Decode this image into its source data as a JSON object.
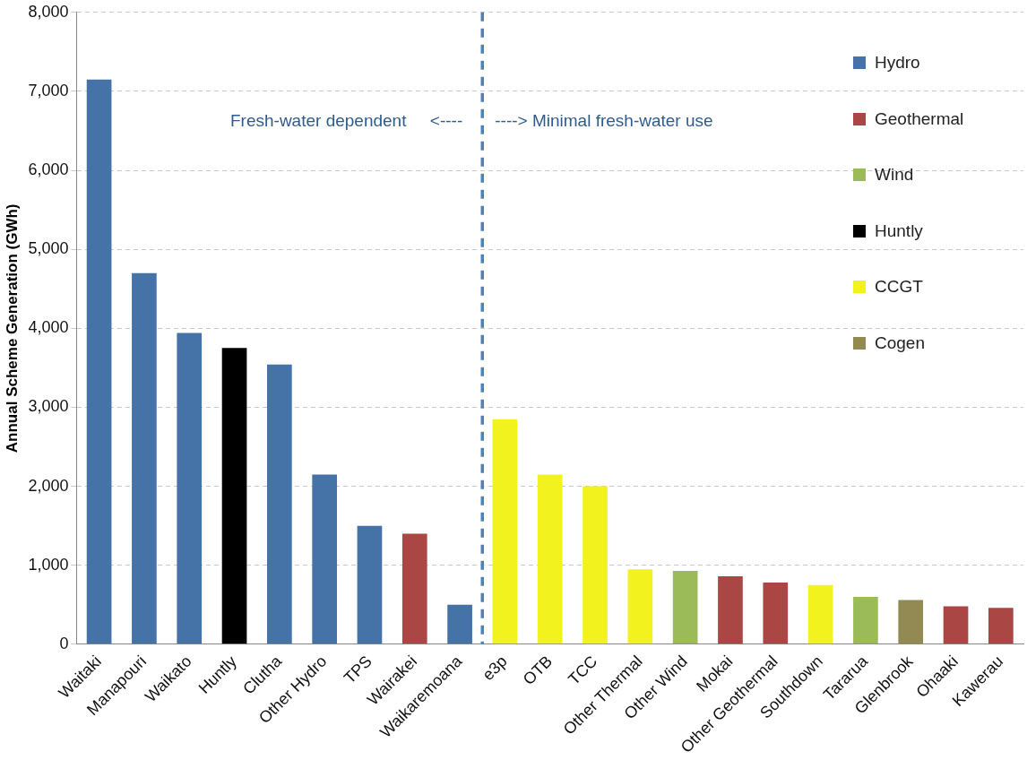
{
  "chart_data": {
    "type": "bar",
    "stacked": true,
    "ylabel": "Annual Scheme Generation (GWh)",
    "categories": [
      "Waitaki",
      "Manapouri",
      "Waikato",
      "Huntly",
      "Clutha",
      "Other Hydro",
      "TPS",
      "Wairakei",
      "Waikaremoana",
      "e3p",
      "OTB",
      "TCC",
      "Other Thermal",
      "Other Wind",
      "Mokai",
      "Other Geothermal",
      "Southdown",
      "Tararua",
      "Glenbrook",
      "Ohaaki",
      "Kawerau"
    ],
    "series": [
      {
        "name": "Hydro",
        "color": "#4572a7",
        "values": [
          7150,
          4700,
          3940,
          null,
          3540,
          2150,
          1500,
          null,
          500,
          null,
          null,
          null,
          null,
          null,
          null,
          null,
          null,
          null,
          null,
          null,
          null
        ]
      },
      {
        "name": "Geothermal",
        "color": "#aa4643",
        "values": [
          null,
          null,
          null,
          null,
          null,
          null,
          null,
          1400,
          null,
          null,
          null,
          null,
          null,
          null,
          860,
          780,
          null,
          null,
          null,
          480,
          460
        ]
      },
      {
        "name": "Wind",
        "color": "#9bbb59",
        "values": [
          null,
          null,
          null,
          null,
          null,
          null,
          null,
          null,
          null,
          null,
          null,
          null,
          null,
          930,
          null,
          null,
          null,
          600,
          null,
          null,
          null
        ]
      },
      {
        "name": "Huntly",
        "color": "#000000",
        "values": [
          null,
          null,
          null,
          3750,
          null,
          null,
          null,
          null,
          null,
          null,
          null,
          null,
          null,
          null,
          null,
          null,
          null,
          null,
          null,
          null,
          null
        ]
      },
      {
        "name": "CCGT",
        "color": "#f2f21e",
        "values": [
          null,
          null,
          null,
          null,
          null,
          null,
          null,
          null,
          null,
          2850,
          2150,
          2000,
          950,
          null,
          null,
          null,
          750,
          null,
          null,
          null,
          null
        ]
      },
      {
        "name": "Cogen",
        "color": "#938953",
        "values": [
          null,
          null,
          null,
          null,
          null,
          null,
          null,
          null,
          null,
          null,
          null,
          null,
          null,
          null,
          null,
          null,
          null,
          null,
          560,
          null,
          null
        ]
      }
    ],
    "ylim": [
      0,
      8000
    ],
    "yticks": [
      {
        "value": 0,
        "label": "0"
      },
      {
        "value": 1000,
        "label": "1,000"
      },
      {
        "value": 2000,
        "label": "2,000"
      },
      {
        "value": 3000,
        "label": "3,000"
      },
      {
        "value": 4000,
        "label": "4,000"
      },
      {
        "value": 5000,
        "label": "5,000"
      },
      {
        "value": 6000,
        "label": "6,000"
      },
      {
        "value": 7000,
        "label": "7,000"
      },
      {
        "value": 8000,
        "label": "8,000"
      }
    ],
    "grid": "y",
    "legend": "top right",
    "ref_lines": [
      {
        "axis": "x",
        "value": "Waikaremoana",
        "color": "#4f81bd",
        "line_style": "dashed"
      }
    ],
    "annotations": [
      "Fresh-water dependent     <----",
      "----> Minimal fresh-water use"
    ]
  }
}
